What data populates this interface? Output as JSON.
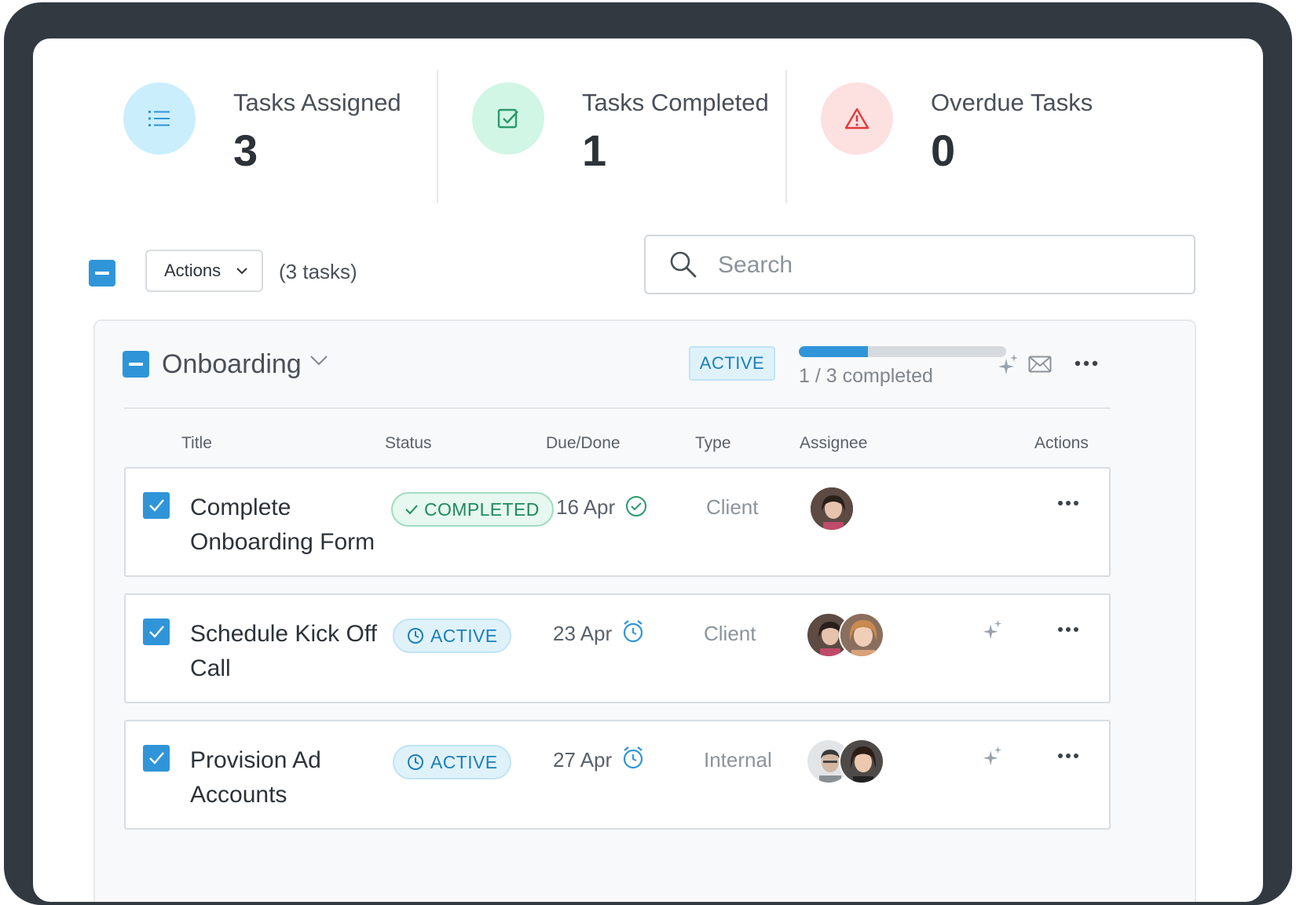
{
  "stats": [
    {
      "label": "Tasks Assigned",
      "value": "3",
      "icon": "list-icon",
      "bg": "#cbeefc",
      "color": "#2f95d8"
    },
    {
      "label": "Tasks Completed",
      "value": "1",
      "icon": "checkbox-icon",
      "bg": "#d1f6e6",
      "color": "#2a9a6b"
    },
    {
      "label": "Overdue Tasks",
      "value": "0",
      "icon": "warning-icon",
      "bg": "#fde0e0",
      "color": "#e03b3b"
    }
  ],
  "toolbar": {
    "actions_label": "Actions",
    "task_count": "(3 tasks)",
    "search_placeholder": "Search"
  },
  "group": {
    "title": "Onboarding",
    "status": "ACTIVE",
    "progress_fraction": 0.333,
    "progress_text": "1 / 3 completed"
  },
  "table": {
    "headers": [
      "Title",
      "Status",
      "Due/Done",
      "Type",
      "Assignee",
      "Actions"
    ],
    "rows": [
      {
        "title": "Complete Onboarding Form",
        "status": "COMPLETED",
        "due": "16 Apr",
        "type": "Client",
        "assignees": 1,
        "has_sparkle": false
      },
      {
        "title": "Schedule Kick Off Call",
        "status": "ACTIVE",
        "due": "23 Apr",
        "type": "Client",
        "assignees": 2,
        "has_sparkle": true
      },
      {
        "title": "Provision Ad Accounts",
        "status": "ACTIVE",
        "due": "27 Apr",
        "type": "Internal",
        "assignees": 2,
        "has_sparkle": true
      }
    ]
  },
  "colors": {
    "accent": "#2f95d8",
    "completed": "#1e8a5c",
    "active": "#1d7fb8"
  }
}
